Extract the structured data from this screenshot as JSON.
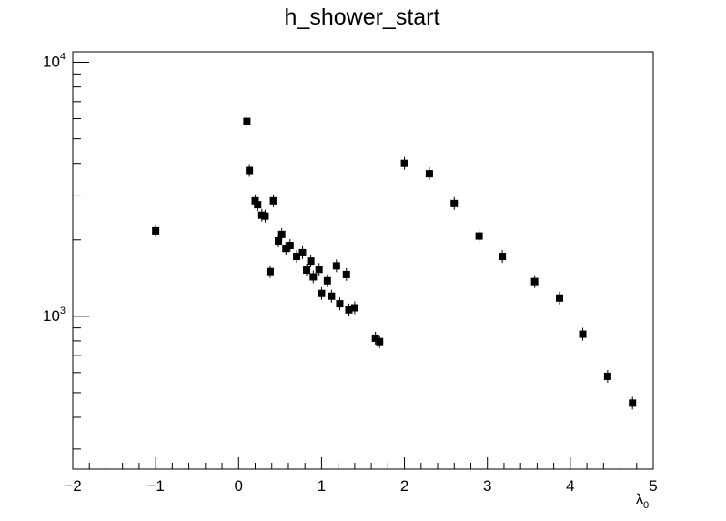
{
  "chart_data": {
    "type": "scatter",
    "title": "h_shower_start",
    "xlabel_symbol": "λ",
    "xlabel_subscript": "0",
    "ylabel": "",
    "xlim": [
      -2,
      5
    ],
    "ylim": [
      250,
      11000
    ],
    "yscale": "log",
    "grid": false,
    "x_tick_labels": [
      "−2",
      "−1",
      "0",
      "1",
      "2",
      "3",
      "4",
      "5"
    ],
    "y_tick_labels": [
      {
        "value": 1000,
        "base": "10",
        "exp": "3"
      },
      {
        "value": 10000,
        "base": "10",
        "exp": "4"
      }
    ],
    "marker": "square",
    "marker_color": "#000000",
    "series": [
      {
        "x": [
          -1.0,
          0.1,
          0.13,
          0.2,
          0.23,
          0.28,
          0.32,
          0.38,
          0.42,
          0.48,
          0.52,
          0.57,
          0.62,
          0.7,
          0.77,
          0.82,
          0.87,
          0.9,
          0.97,
          1.0,
          1.07,
          1.12,
          1.18,
          1.22,
          1.3,
          1.33,
          1.4,
          1.65,
          1.7,
          2.0,
          2.3,
          2.6,
          2.9,
          3.18,
          3.57,
          3.87,
          4.15,
          4.45,
          4.75
        ],
        "y": [
          2170,
          5850,
          3750,
          2850,
          2750,
          2500,
          2480,
          1500,
          2850,
          1980,
          2100,
          1850,
          1900,
          1720,
          1780,
          1520,
          1650,
          1430,
          1530,
          1230,
          1380,
          1200,
          1580,
          1120,
          1460,
          1060,
          1080,
          820,
          795,
          4000,
          3640,
          2780,
          2070,
          1720,
          1370,
          1180,
          850,
          580,
          455
        ]
      }
    ]
  }
}
